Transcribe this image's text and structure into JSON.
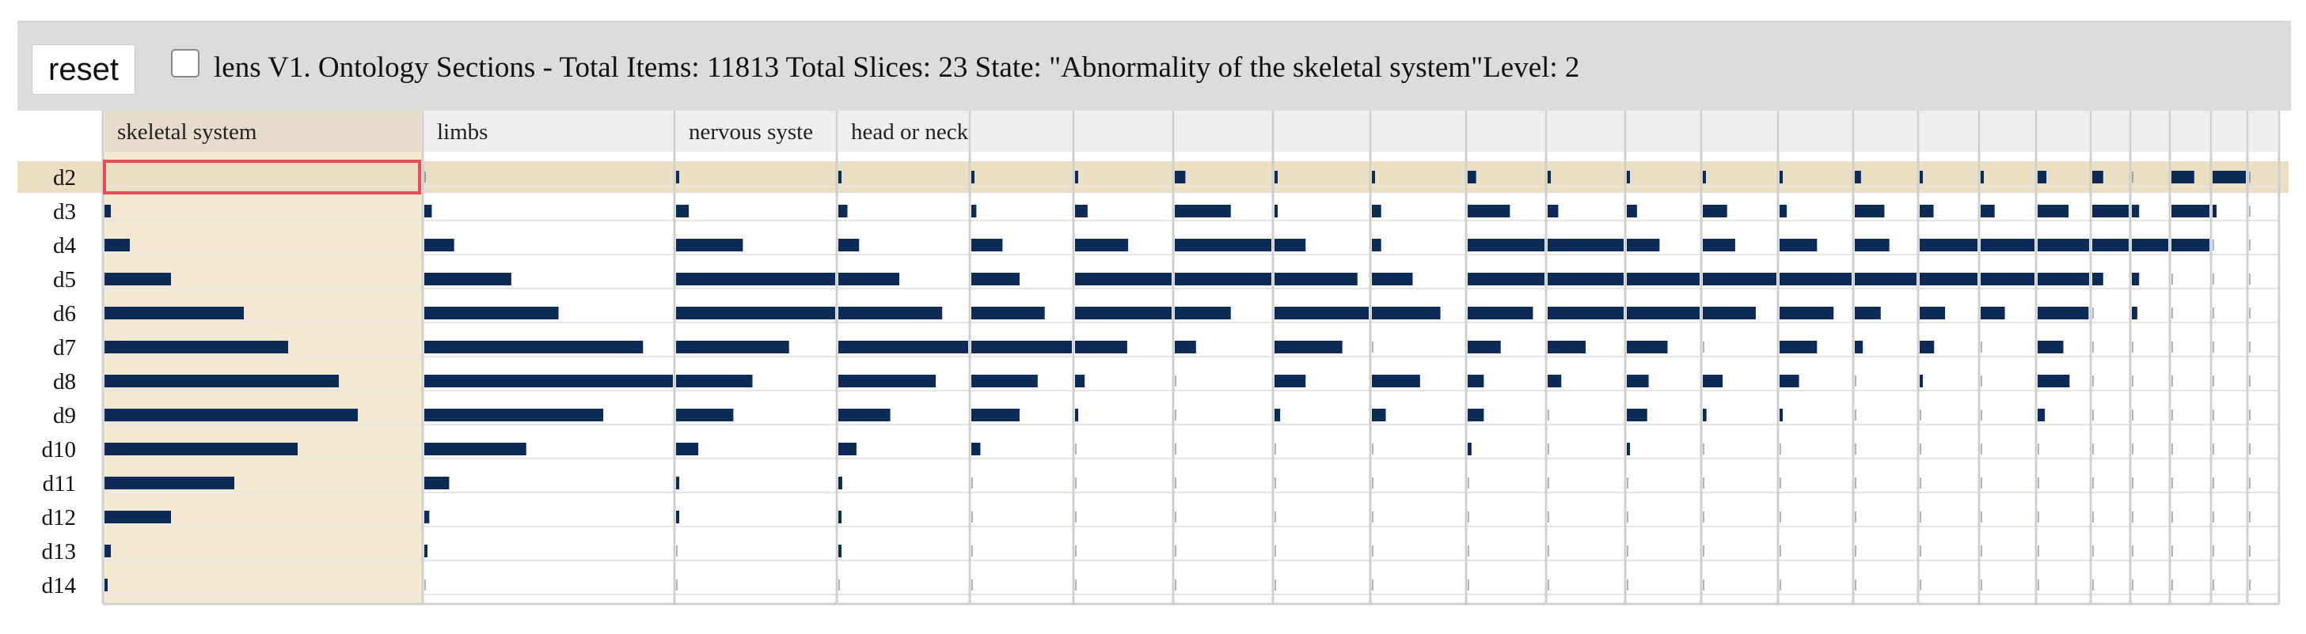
{
  "toolbar": {
    "reset_label": "reset",
    "status_text": "lens V1. Ontology Sections - Total Items: 11813 Total Slices: 23 State: \"Abnormality of the skeletal system\"Level: 2"
  },
  "colors": {
    "bar": "#0d2b57",
    "highlight_column": "#f5e8d2",
    "highlight_row": "#ebdec2",
    "header_bg": "#efefef",
    "header_selected_bg": "#e7dcc9",
    "gridline": "#cfcfcf",
    "selection_border": "#e0505a"
  },
  "chart_data": {
    "type": "bar",
    "layout": "small-multiples",
    "rows": [
      "d2",
      "d3",
      "d4",
      "d5",
      "d6",
      "d7",
      "d8",
      "d9",
      "d10",
      "d11",
      "d12",
      "d13",
      "d14"
    ],
    "selected_row": "d2",
    "selected_column": "skeletal system",
    "columns": [
      {
        "label": "skeletal system",
        "values": [
          0,
          2,
          8,
          21,
          44,
          58,
          74,
          80,
          61,
          41,
          21,
          2,
          1
        ]
      },
      {
        "label": "limbs",
        "values": [
          0,
          3,
          12,
          35,
          54,
          88,
          100,
          72,
          41,
          10,
          2,
          1,
          0
        ]
      },
      {
        "label": "nervous syste",
        "values": [
          1,
          8,
          42,
          100,
          100,
          71,
          48,
          36,
          14,
          2,
          1,
          0,
          0
        ]
      },
      {
        "label": "head or neck",
        "values": [
          1,
          7,
          16,
          47,
          80,
          100,
          75,
          40,
          14,
          3,
          2,
          1,
          0
        ]
      },
      {
        "label": "",
        "values": [
          1,
          5,
          31,
          48,
          73,
          100,
          66,
          48,
          9,
          0,
          0,
          0,
          0
        ]
      },
      {
        "label": "",
        "values": [
          1,
          13,
          55,
          100,
          100,
          54,
          10,
          1,
          0,
          0,
          0,
          0,
          0
        ]
      },
      {
        "label": "",
        "values": [
          11,
          58,
          100,
          100,
          58,
          22,
          0,
          0,
          0,
          0,
          0,
          0,
          0
        ]
      },
      {
        "label": "",
        "values": [
          1,
          1,
          33,
          88,
          100,
          72,
          33,
          6,
          0,
          0,
          0,
          0,
          0
        ]
      },
      {
        "label": "",
        "values": [
          1,
          10,
          10,
          44,
          74,
          0,
          52,
          15,
          0,
          0,
          0,
          0,
          0
        ]
      },
      {
        "label": "",
        "values": [
          11,
          55,
          100,
          100,
          85,
          43,
          21,
          21,
          5,
          0,
          0,
          0,
          0
        ]
      },
      {
        "label": "",
        "values": [
          1,
          14,
          100,
          100,
          100,
          50,
          18,
          0,
          0,
          0,
          0,
          0,
          0
        ]
      },
      {
        "label": "",
        "values": [
          1,
          14,
          45,
          100,
          100,
          56,
          30,
          28,
          3,
          0,
          0,
          0,
          0
        ]
      },
      {
        "label": "",
        "values": [
          1,
          33,
          44,
          100,
          72,
          0,
          27,
          5,
          0,
          0,
          0,
          0,
          0
        ]
      },
      {
        "label": "",
        "values": [
          1,
          10,
          52,
          100,
          75,
          52,
          27,
          1,
          0,
          0,
          0,
          0,
          0
        ]
      },
      {
        "label": "",
        "values": [
          10,
          48,
          56,
          100,
          42,
          13,
          0,
          0,
          0,
          0,
          0,
          0,
          0
        ]
      },
      {
        "label": "",
        "values": [
          1,
          24,
          100,
          100,
          44,
          25,
          1,
          0,
          0,
          0,
          0,
          0,
          0
        ]
      },
      {
        "label": "",
        "values": [
          1,
          26,
          100,
          100,
          45,
          0,
          0,
          0,
          0,
          0,
          0,
          0,
          0
        ]
      },
      {
        "label": "",
        "values": [
          17,
          60,
          100,
          100,
          99,
          50,
          62,
          14,
          0,
          0,
          0,
          0,
          0
        ]
      },
      {
        "label": "",
        "values": [
          30,
          100,
          100,
          30,
          0,
          0,
          0,
          0,
          0,
          0,
          0,
          0,
          0
        ]
      },
      {
        "label": "",
        "values": [
          0,
          20,
          100,
          20,
          15,
          0,
          0,
          0,
          0,
          0,
          0,
          0,
          0
        ]
      },
      {
        "label": "",
        "values": [
          60,
          100,
          100,
          0,
          0,
          0,
          0,
          0,
          0,
          0,
          0,
          0,
          0
        ]
      },
      {
        "label": "",
        "values": [
          100,
          12,
          0,
          0,
          0,
          0,
          0,
          0,
          0,
          0,
          0,
          0,
          0
        ]
      },
      {
        "label": "",
        "values": [
          0,
          0,
          0,
          0,
          0,
          0,
          0,
          0,
          0,
          0,
          0,
          0,
          0
        ]
      }
    ]
  }
}
